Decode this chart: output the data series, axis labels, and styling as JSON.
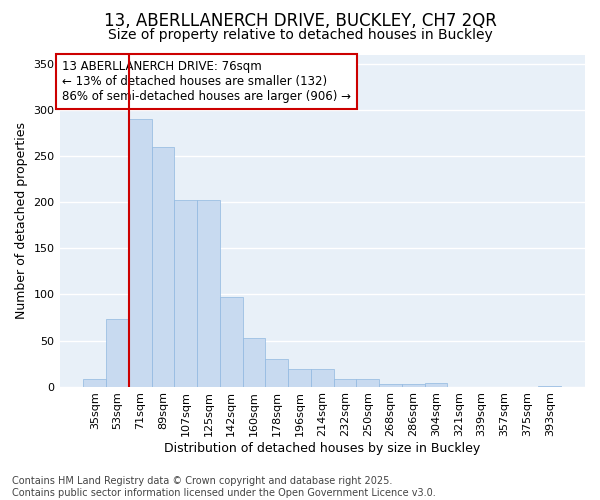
{
  "title1": "13, ABERLLANERCH DRIVE, BUCKLEY, CH7 2QR",
  "title2": "Size of property relative to detached houses in Buckley",
  "xlabel": "Distribution of detached houses by size in Buckley",
  "ylabel": "Number of detached properties",
  "categories": [
    "35sqm",
    "53sqm",
    "71sqm",
    "89sqm",
    "107sqm",
    "125sqm",
    "142sqm",
    "160sqm",
    "178sqm",
    "196sqm",
    "214sqm",
    "232sqm",
    "250sqm",
    "268sqm",
    "286sqm",
    "304sqm",
    "321sqm",
    "339sqm",
    "357sqm",
    "375sqm",
    "393sqm"
  ],
  "values": [
    8,
    73,
    290,
    260,
    203,
    203,
    97,
    53,
    30,
    19,
    19,
    8,
    8,
    3,
    3,
    4,
    0,
    0,
    0,
    0,
    1
  ],
  "bar_color": "#c8daf0",
  "bar_edge_color": "#90b8e0",
  "vline_color": "#cc0000",
  "annotation_box_text": "13 ABERLLANERCH DRIVE: 76sqm\n← 13% of detached houses are smaller (132)\n86% of semi-detached houses are larger (906) →",
  "annotation_box_color": "#cc0000",
  "ylim": [
    0,
    360
  ],
  "yticks": [
    0,
    50,
    100,
    150,
    200,
    250,
    300,
    350
  ],
  "background_color": "#ffffff",
  "plot_bg_color": "#e8f0f8",
  "grid_color": "#ffffff",
  "footer_text": "Contains HM Land Registry data © Crown copyright and database right 2025.\nContains public sector information licensed under the Open Government Licence v3.0.",
  "title1_fontsize": 12,
  "title2_fontsize": 10,
  "annotation_fontsize": 8.5,
  "tick_fontsize": 8,
  "label_fontsize": 9,
  "footer_fontsize": 7
}
